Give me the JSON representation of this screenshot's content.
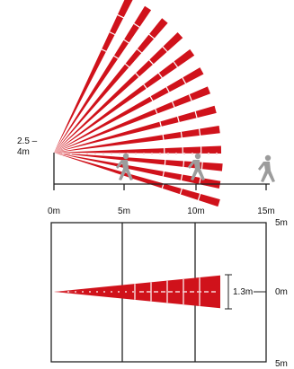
{
  "colors": {
    "beam": "#d0121b",
    "beam_dot": "#f6c9cc",
    "line": "#222222",
    "person": "#9c9c9c"
  },
  "side_view": {
    "height_label_line1": "2.5 –",
    "height_label_line2": "4m",
    "distance_ticks": [
      "0m",
      "5m",
      "10m",
      "15m"
    ]
  },
  "top_view": {
    "width_labels": {
      "top": "5m",
      "middle": "0m",
      "bottom": "5m"
    },
    "spread_label": "1.3m"
  },
  "icons": [
    "walking-person-icon"
  ]
}
